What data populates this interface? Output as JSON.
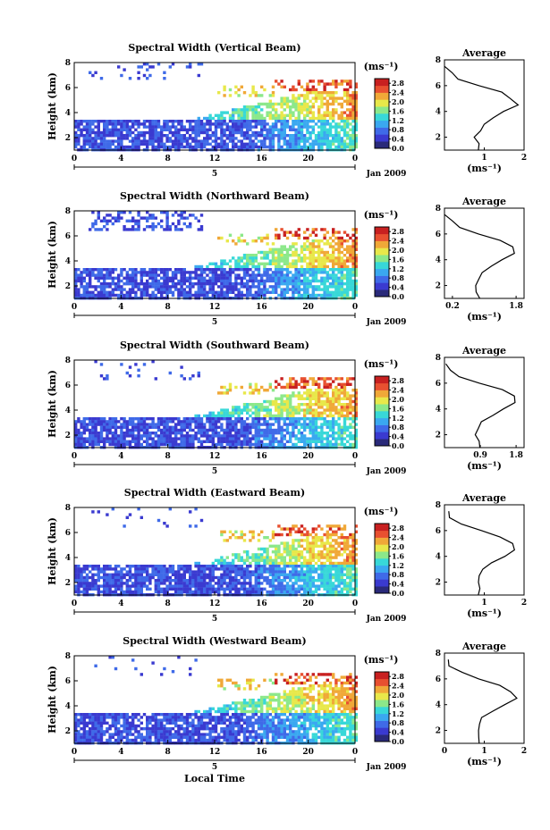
{
  "chart_data": [
    {
      "type": "heatmap",
      "title": "Spectral Width (Vertical Beam)",
      "ylabel": "Height (km)",
      "date_label": "Jan 2009",
      "day_label": "5",
      "xticks": [
        "0",
        "4",
        "8",
        "12",
        "16",
        "20",
        "0"
      ],
      "yticks": [
        "2",
        "4",
        "6",
        "8"
      ],
      "xlim": [
        0,
        24
      ],
      "ylim": [
        1,
        8
      ],
      "colorbar": {
        "unit": "(ms⁻¹)",
        "ticks": [
          "0.0",
          "0.4",
          "0.8",
          "1.2",
          "1.6",
          "2.0",
          "2.4",
          "2.8"
        ],
        "range": [
          0,
          3.0
        ]
      },
      "average": {
        "title": "Average",
        "xlabel": "(ms⁻¹)",
        "xticks": [
          "1",
          "2"
        ],
        "xtick_values": [
          1,
          2
        ],
        "xlim": [
          0,
          2
        ],
        "yticks": [
          "2",
          "4",
          "6",
          "8"
        ]
      }
    },
    {
      "type": "heatmap",
      "title": "Spectral Width (Northward Beam)",
      "ylabel": "Height (km)",
      "date_label": "Jan 2009",
      "day_label": "5",
      "xticks": [
        "0",
        "4",
        "8",
        "12",
        "16",
        "20",
        "0"
      ],
      "yticks": [
        "2",
        "4",
        "6",
        "8"
      ],
      "xlim": [
        0,
        24
      ],
      "ylim": [
        1,
        8
      ],
      "colorbar": {
        "unit": "(ms⁻¹)",
        "ticks": [
          "0.0",
          "0.4",
          "0.8",
          "1.2",
          "1.6",
          "2.0",
          "2.4",
          "2.8"
        ],
        "range": [
          0,
          3.0
        ]
      },
      "average": {
        "title": "Average",
        "xlabel": "(ms⁻¹)",
        "xticks": [
          "0.2",
          "1.8"
        ],
        "xtick_values": [
          0.2,
          1.8
        ],
        "xlim": [
          0,
          2
        ],
        "yticks": [
          "2",
          "4",
          "6",
          "8"
        ]
      }
    },
    {
      "type": "heatmap",
      "title": "Spectral Width (Southward Beam)",
      "ylabel": "Height (km)",
      "date_label": "Jan 2009",
      "day_label": "5",
      "xticks": [
        "0",
        "4",
        "8",
        "12",
        "16",
        "20",
        "0"
      ],
      "yticks": [
        "2",
        "4",
        "6",
        "8"
      ],
      "xlim": [
        0,
        24
      ],
      "ylim": [
        1,
        8
      ],
      "colorbar": {
        "unit": "(ms⁻¹)",
        "ticks": [
          "0.0",
          "0.4",
          "0.8",
          "1.2",
          "1.6",
          "2.0",
          "2.4",
          "2.8"
        ],
        "range": [
          0,
          3.0
        ]
      },
      "average": {
        "title": "Average",
        "xlabel": "(ms⁻¹)",
        "xticks": [
          "0.9",
          "1.8"
        ],
        "xtick_values": [
          0.9,
          1.8
        ],
        "xlim": [
          0,
          2
        ],
        "yticks": [
          "2",
          "4",
          "6",
          "8"
        ]
      }
    },
    {
      "type": "heatmap",
      "title": "Spectral Width (Eastward Beam)",
      "ylabel": "Height (km)",
      "date_label": "Jan 2009",
      "day_label": "5",
      "xticks": [
        "0",
        "4",
        "8",
        "12",
        "16",
        "20",
        "0"
      ],
      "yticks": [
        "2",
        "4",
        "6",
        "8"
      ],
      "xlim": [
        0,
        24
      ],
      "ylim": [
        1,
        8
      ],
      "colorbar": {
        "unit": "(ms⁻¹)",
        "ticks": [
          "0.0",
          "0.4",
          "0.8",
          "1.2",
          "1.6",
          "2.0",
          "2.4",
          "2.8"
        ],
        "range": [
          0,
          3.0
        ]
      },
      "average": {
        "title": "Average",
        "xlabel": "(ms⁻¹)",
        "xticks": [
          "1",
          "2"
        ],
        "xtick_values": [
          1,
          2
        ],
        "xlim": [
          0,
          2
        ],
        "yticks": [
          "2",
          "4",
          "6",
          "8"
        ]
      }
    },
    {
      "type": "heatmap",
      "title": "Spectral Width (Westward Beam)",
      "ylabel": "Height (km)",
      "date_label": "Jan 2009",
      "day_label": "5",
      "xlabel": "Local Time",
      "xticks": [
        "0",
        "4",
        "8",
        "12",
        "16",
        "20",
        "0"
      ],
      "yticks": [
        "2",
        "4",
        "6",
        "8"
      ],
      "xlim": [
        0,
        24
      ],
      "ylim": [
        1,
        8
      ],
      "colorbar": {
        "unit": "(ms⁻¹)",
        "ticks": [
          "0.0",
          "0.4",
          "0.8",
          "1.2",
          "1.6",
          "2.0",
          "2.4",
          "2.8"
        ],
        "range": [
          0,
          3.0
        ]
      },
      "average": {
        "title": "Average",
        "xlabel": "(ms⁻¹)",
        "xticks": [
          "0",
          "1",
          "2"
        ],
        "xtick_values": [
          0,
          1,
          2
        ],
        "xlim": [
          0,
          2
        ],
        "yticks": [
          "2",
          "4",
          "6",
          "8"
        ]
      }
    }
  ],
  "average_profile": {
    "height_km": [
      1.0,
      1.5,
      2.0,
      2.5,
      3.0,
      3.5,
      4.0,
      4.5,
      5.0,
      5.5,
      6.0,
      6.5,
      7.0,
      7.5
    ],
    "value": [
      0.9,
      0.85,
      0.8,
      0.85,
      0.95,
      1.2,
      1.5,
      1.8,
      1.7,
      1.4,
      0.9,
      0.4,
      0.15,
      0.05
    ]
  },
  "colors": {
    "colormap": [
      "#2a2a7a",
      "#3a3ad0",
      "#3f6ae8",
      "#3aa8f0",
      "#38d8d8",
      "#8ce88a",
      "#e8e84a",
      "#f0a838",
      "#e85030",
      "#c82020"
    ]
  }
}
